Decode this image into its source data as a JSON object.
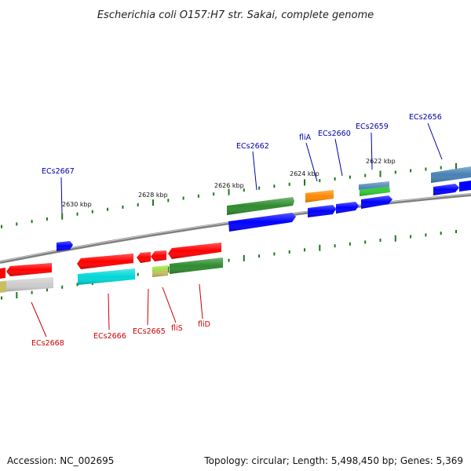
{
  "title": "Escherichia coli O157:H7 str. Sakai, complete genome",
  "footer": {
    "accession": "Accession: NC_002695",
    "topology": "Topology: circular; Length: 5,498,450 bp; Genes: 5,369"
  },
  "colors": {
    "backbone": "#888888",
    "tick": "#1a7a1a",
    "forward_label": "#0000aa",
    "reverse_label": "#cc0000",
    "red": "#ff0000",
    "blue": "#0000ff",
    "green": "#2e8b2e",
    "cyan": "#00d8d8",
    "orange": "#ff8800",
    "steelblue": "#4682b4",
    "lightgray": "#cccccc",
    "olive": "#c8c060",
    "yellowgreen": "#99dd33"
  },
  "scale_labels": [
    "2630 kbp",
    "2628 kbp",
    "2626 kbp",
    "2624 kbp",
    "2622 kbp"
  ],
  "gene_labels_forward": [
    "ECs2667",
    "ECs2662",
    "fliA",
    "ECs2660",
    "ECs2659",
    "ECs2656"
  ],
  "gene_labels_reverse": [
    "ECs2668",
    "ECs2666",
    "ECs2665",
    "fliS",
    "fliD"
  ]
}
